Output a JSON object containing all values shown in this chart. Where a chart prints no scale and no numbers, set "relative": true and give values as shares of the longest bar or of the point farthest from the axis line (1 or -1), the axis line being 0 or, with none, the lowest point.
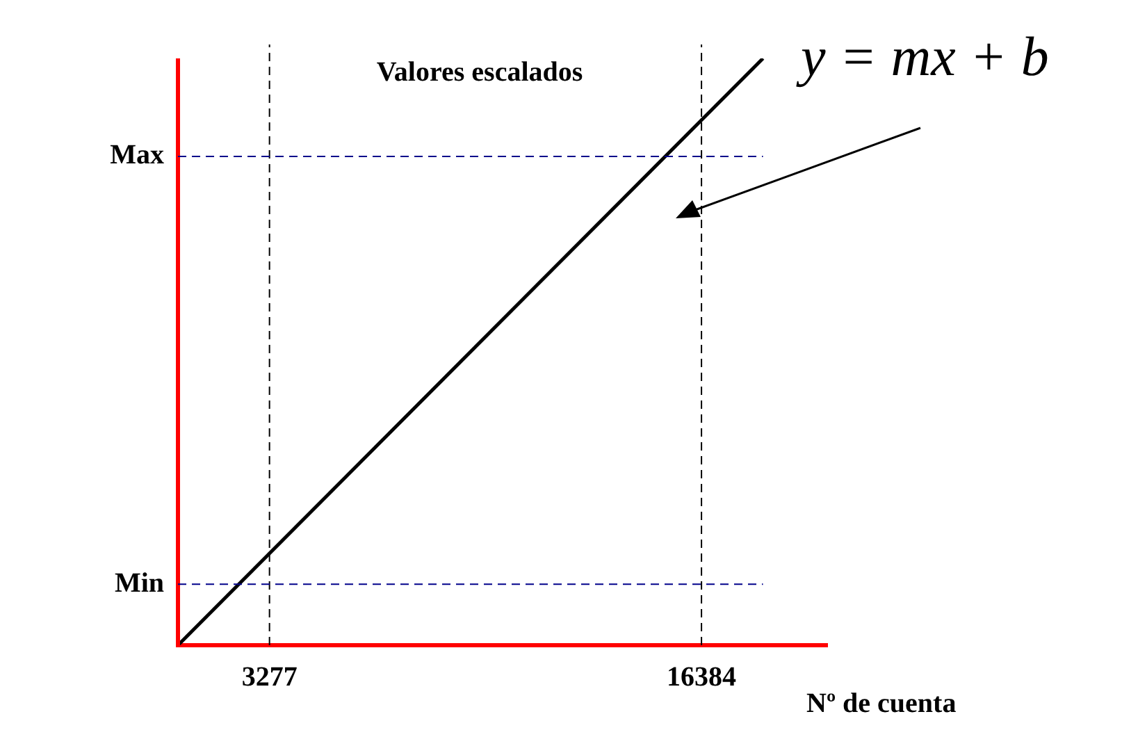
{
  "chart_data": {
    "type": "line",
    "title": "Valores escalados",
    "xlabel": "Nº de cuenta",
    "relative": true,
    "x": [
      500,
      18250
    ],
    "series": [
      {
        "color": "#000000",
        "values": [
          0,
          1
        ]
      }
    ],
    "xlim": [
      500,
      20200
    ],
    "xticks": [
      3277,
      16384
    ],
    "ref_lines": [
      {
        "axis": "x",
        "value": 3277,
        "color": "#000000",
        "line_style": "dashed"
      },
      {
        "axis": "x",
        "value": 16384,
        "color": "#000000",
        "line_style": "dashed"
      },
      {
        "axis": "y",
        "value": 0.104,
        "label": "Min",
        "color": "#00008b",
        "line_style": "dashed"
      },
      {
        "axis": "y",
        "value": 0.833,
        "label": "Max",
        "color": "#00008b",
        "line_style": "dashed"
      }
    ],
    "annotations": [
      "y = mx + b"
    ],
    "grid": false,
    "legend": false,
    "marker": "none",
    "line_style": "solid"
  }
}
